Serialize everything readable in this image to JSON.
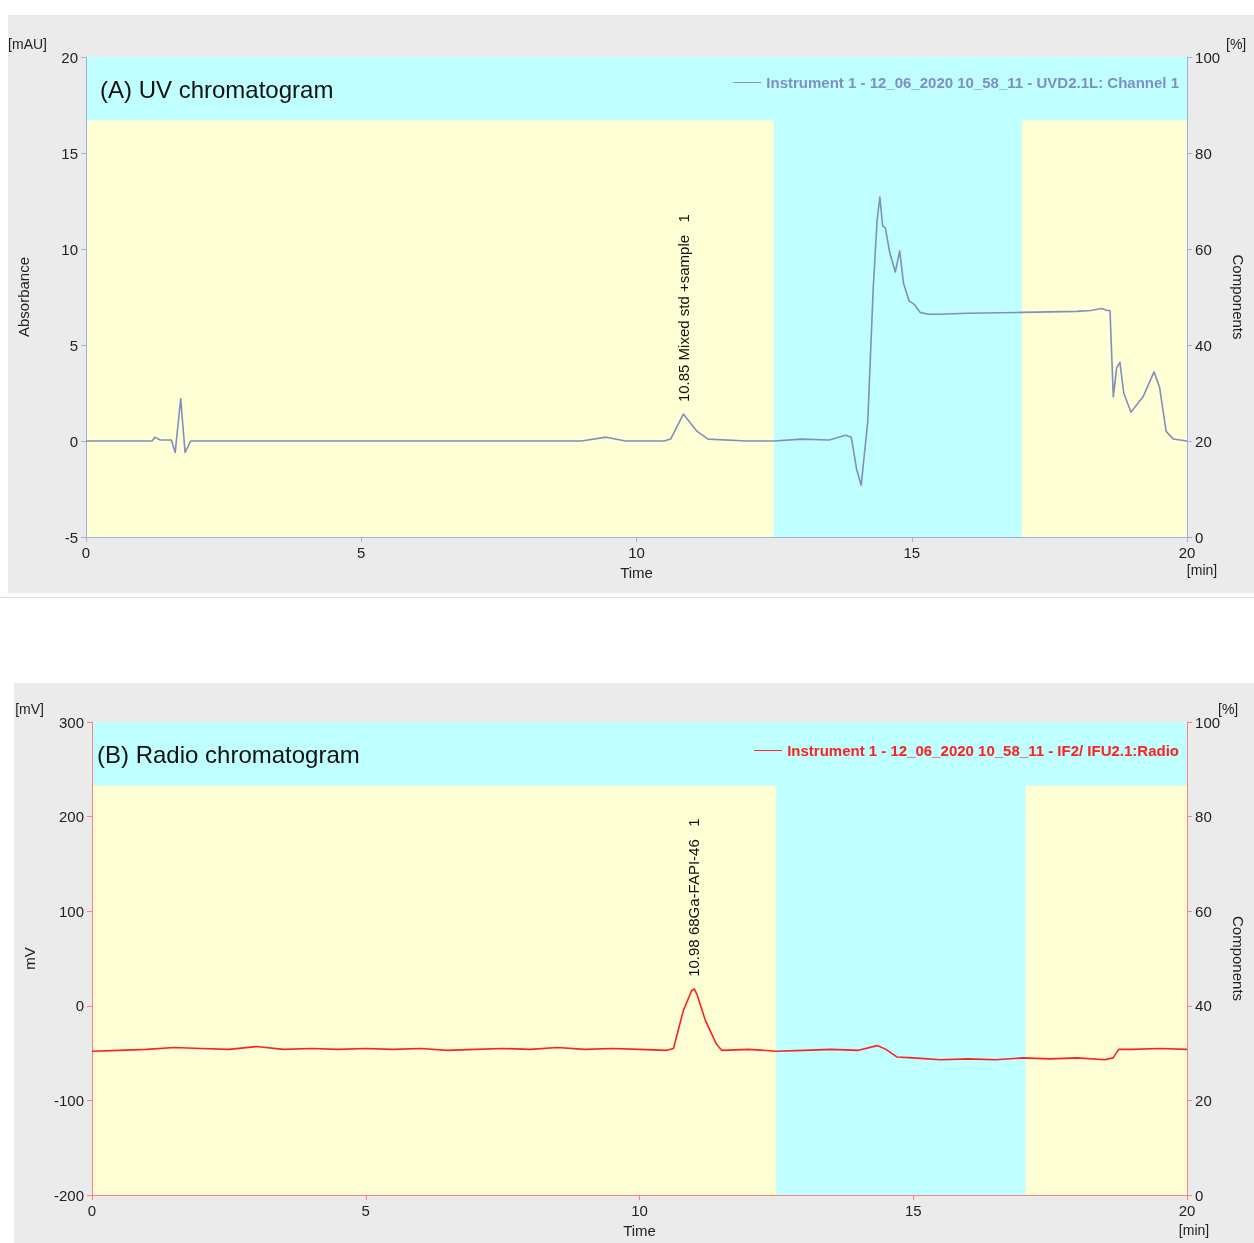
{
  "chart_data": [
    {
      "type": "line",
      "title": "(A) UV chromatogram",
      "xlabel": "Time",
      "ylabel": "Absorbance",
      "y2label": "Components",
      "x": [
        0,
        1.2,
        1.25,
        1.35,
        1.55,
        1.62,
        1.72,
        1.8,
        1.9,
        3,
        5,
        7,
        9,
        9.45,
        9.8,
        10.5,
        10.62,
        10.85,
        11.1,
        11.3,
        12,
        12.5,
        13,
        13.5,
        13.8,
        13.9,
        14.0,
        14.08,
        14.2,
        14.3,
        14.37,
        14.42,
        14.47,
        14.52,
        14.6,
        14.7,
        14.78,
        14.85,
        14.95,
        15.05,
        15.15,
        15.3,
        15.5,
        16,
        17,
        18,
        18.25,
        18.45,
        18.55,
        18.6,
        18.66,
        18.72,
        18.78,
        18.85,
        18.98,
        19.2,
        19.4,
        19.5,
        19.62,
        19.75,
        20
      ],
      "series": [
        {
          "name": "Instrument 1 - 12_06_2020 10_58_11 - UVD2.1L: Channel 1",
          "color": "#7f8fbf",
          "values": [
            0,
            0,
            0.2,
            0.05,
            0.05,
            -0.6,
            2.2,
            -0.6,
            0,
            0,
            0,
            0,
            0,
            0.2,
            0,
            0,
            0.1,
            1.4,
            0.5,
            0.1,
            0,
            0,
            0.1,
            0.05,
            0.3,
            0.2,
            -1.5,
            -2.3,
            1,
            8,
            11.5,
            12.7,
            11.2,
            11.1,
            9.8,
            8.8,
            9.9,
            8.2,
            7.3,
            7.1,
            6.7,
            6.6,
            6.6,
            6.65,
            6.7,
            6.75,
            6.8,
            6.9,
            6.8,
            6.8,
            2.3,
            3.8,
            4.1,
            2.5,
            1.5,
            2.3,
            3.6,
            2.8,
            0.5,
            0.1,
            0
          ]
        }
      ],
      "xlim": [
        0,
        20
      ],
      "xticks": [
        0,
        5,
        10,
        15,
        20
      ],
      "ylim": [
        -5,
        20
      ],
      "yticks": [
        -5,
        0,
        5,
        10,
        15,
        20
      ],
      "y2lim": [
        0,
        100
      ],
      "y2ticks": [
        0,
        20,
        40,
        60,
        80,
        100
      ],
      "bands": [
        {
          "axis": "x",
          "from": 0,
          "to": 12.5,
          "color": "#ffffd6"
        },
        {
          "axis": "x",
          "from": 12.5,
          "to": 17.0,
          "color": "#c0ffff"
        },
        {
          "axis": "x",
          "from": 17.0,
          "to": 20,
          "color": "#ffffd6"
        },
        {
          "axis": "y",
          "from": 16.7,
          "to": 20,
          "color": "#c0ffff"
        }
      ],
      "annotations": [
        "[mAU]",
        "[%]",
        "[min]",
        {
          "text": "10.85 Mixed std +sample   1",
          "x": 10.85,
          "y": 1.4
        }
      ],
      "legend": "top right",
      "marker": "none",
      "line_style": "solid"
    },
    {
      "type": "line",
      "title": "(B) Radio chromatogram",
      "xlabel": "Time",
      "ylabel": "mV",
      "y2label": "Components",
      "x": [
        0,
        0.5,
        1,
        1.5,
        2,
        2.5,
        3,
        3.5,
        4,
        4.5,
        5,
        5.5,
        6,
        6.5,
        7,
        7.5,
        8,
        8.5,
        9,
        9.5,
        10,
        10.5,
        10.62,
        10.8,
        10.95,
        11.0,
        11.05,
        11.2,
        11.4,
        11.5,
        12,
        12.5,
        13,
        13.5,
        14,
        14.34,
        14.5,
        14.7,
        15,
        15.5,
        16,
        16.5,
        17,
        17.5,
        18,
        18.5,
        18.65,
        18.75,
        19,
        19.5,
        20
      ],
      "series": [
        {
          "name": "Instrument 1 - 12_06_2020 10_58_11 - IF2/ IFU2.1:Radio",
          "color": "#ff2020",
          "values": [
            -48,
            -47,
            -46,
            -44,
            -45,
            -46,
            -43,
            -46,
            -45,
            -46,
            -45,
            -46,
            -45,
            -47,
            -46,
            -45,
            -46,
            -44,
            -46,
            -45,
            -46,
            -47,
            -45,
            -5,
            16,
            18,
            12,
            -15,
            -40,
            -47,
            -46,
            -48,
            -47,
            -46,
            -47,
            -42,
            -46,
            -54,
            -55,
            -57,
            -56,
            -57,
            -55,
            -56,
            -55,
            -57,
            -55,
            -46,
            -46,
            -45,
            -46
          ]
        }
      ],
      "xlim": [
        0,
        20
      ],
      "xticks": [
        0,
        5,
        10,
        15,
        20
      ],
      "ylim": [
        -200,
        300
      ],
      "yticks": [
        -200,
        -100,
        0,
        100,
        200,
        300
      ],
      "y2lim": [
        0,
        100
      ],
      "y2ticks": [
        0,
        20,
        40,
        60,
        80,
        100
      ],
      "bands": [
        {
          "axis": "x",
          "from": 0,
          "to": 12.5,
          "color": "#ffffd6"
        },
        {
          "axis": "x",
          "from": 12.5,
          "to": 17.05,
          "color": "#c0ffff"
        },
        {
          "axis": "x",
          "from": 17.05,
          "to": 20,
          "color": "#ffffd6"
        },
        {
          "axis": "y",
          "from": 233,
          "to": 300,
          "color": "#c0ffff"
        }
      ],
      "annotations": [
        "[mV]",
        "[%]",
        "[min]",
        {
          "text": "10.98 68Ga-FAPI-46   1",
          "x": 10.98,
          "y": 18
        }
      ],
      "legend": "top right",
      "marker": "none",
      "line_style": "solid"
    }
  ]
}
